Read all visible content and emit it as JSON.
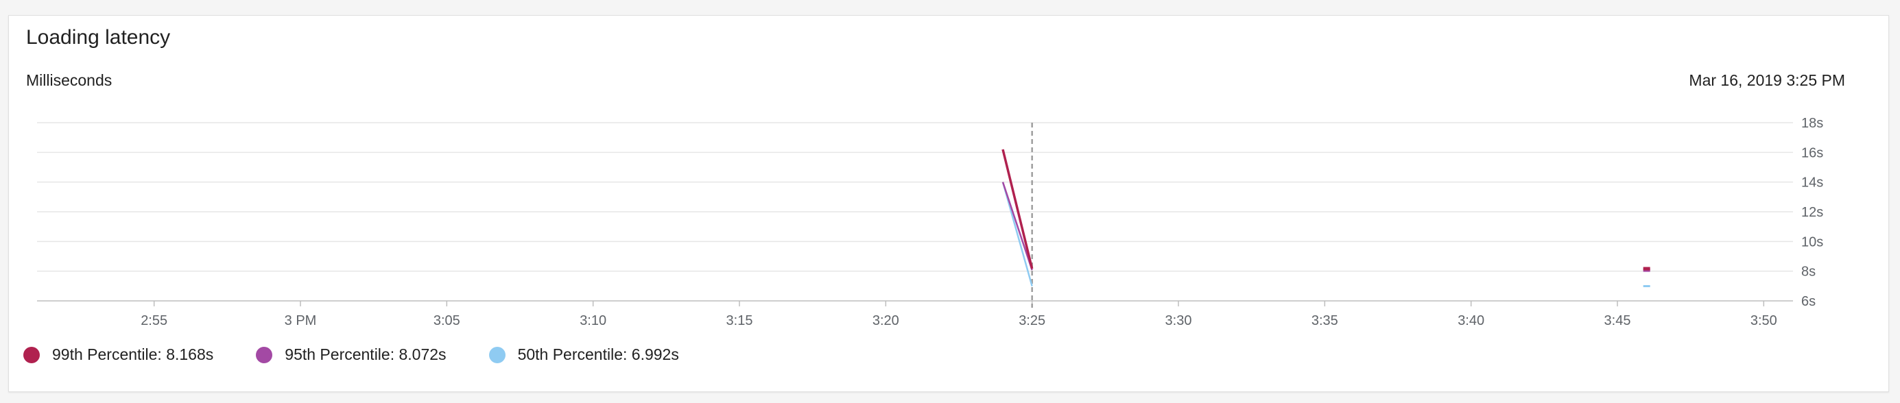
{
  "card": {
    "title": "Loading latency",
    "unit_label": "Milliseconds",
    "timestamp": "Mar 16, 2019 3:25 PM"
  },
  "legend": [
    {
      "label": "99th Percentile: 8.168s",
      "color": "#b0214f"
    },
    {
      "label": "95th Percentile: 8.072s",
      "color": "#a349a4"
    },
    {
      "label": "50th Percentile: 6.992s",
      "color": "#8fcbf2"
    }
  ],
  "chart_data": {
    "type": "line",
    "title": "Loading latency",
    "ylabel": "Milliseconds",
    "x_tick_labels": [
      "2:55",
      "3 PM",
      "3:05",
      "3:10",
      "3:15",
      "3:20",
      "3:25",
      "3:30",
      "3:35",
      "3:40",
      "3:45",
      "3:50"
    ],
    "y_tick_labels": [
      "6s",
      "8s",
      "10s",
      "12s",
      "14s",
      "16s",
      "18s"
    ],
    "y_ticks": [
      6,
      8,
      10,
      12,
      14,
      16,
      18
    ],
    "ylim": [
      6,
      18
    ],
    "x_range_minutes": [
      "2:51",
      "3:51"
    ],
    "cursor_time": "3:25",
    "grid": true,
    "series": [
      {
        "name": "99th Percentile",
        "color": "#b0214f",
        "points": [
          [
            "3:24",
            16.2
          ],
          [
            "3:25",
            8.168
          ],
          [
            "3:46",
            8.168
          ]
        ]
      },
      {
        "name": "95th Percentile",
        "color": "#a349a4",
        "points": [
          [
            "3:24",
            14.0
          ],
          [
            "3:25",
            8.072
          ],
          [
            "3:46",
            8.072
          ]
        ]
      },
      {
        "name": "50th Percentile",
        "color": "#8fcbf2",
        "points": [
          [
            "3:24",
            14.0
          ],
          [
            "3:25",
            6.992
          ],
          [
            "3:46",
            6.992
          ]
        ]
      }
    ]
  }
}
